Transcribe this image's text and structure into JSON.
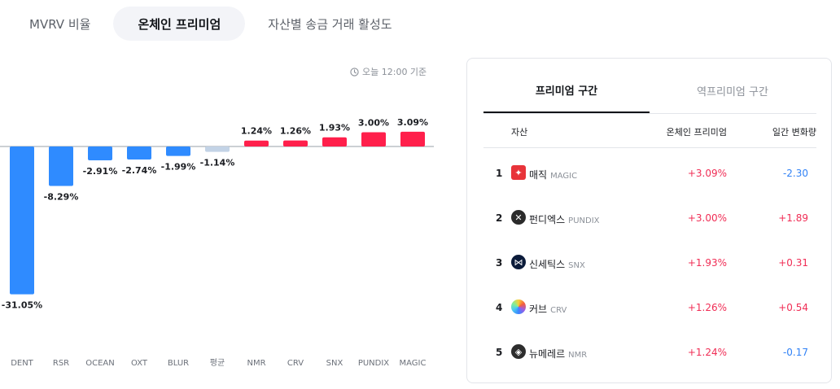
{
  "tabs": [
    "MVRV 비율",
    "온체인 프리미엄",
    "자산별 송금 거래 활성도"
  ],
  "updated_label": "오늘 12:00 기준",
  "colors": {
    "positive": "#ff1f4b",
    "negative": "#2f8bff",
    "average": "#c3d3e6",
    "up_text": "#f02d55",
    "down_text": "#3182f6"
  },
  "chart_data": {
    "type": "bar",
    "categories": [
      "DENT",
      "RSR",
      "OCEAN",
      "OXT",
      "BLUR",
      "평균",
      "NMR",
      "CRV",
      "SNX",
      "PUNDIX",
      "MAGIC"
    ],
    "values": [
      -31.05,
      -8.29,
      -2.91,
      -2.74,
      -1.99,
      -1.14,
      1.24,
      1.26,
      1.93,
      3.0,
      3.09
    ],
    "labels": [
      "-31.05%",
      "-8.29%",
      "-2.91%",
      "-2.74%",
      "-1.99%",
      "-1.14%",
      "1.24%",
      "1.26%",
      "1.93%",
      "3.00%",
      "3.09%"
    ],
    "highlight_category": "평균",
    "title": "",
    "xlabel": "",
    "ylabel": ""
  },
  "panel": {
    "tabs": [
      "프리미엄 구간",
      "역프리미엄 구간"
    ],
    "headers": {
      "asset": "자산",
      "premium": "온체인 프리미엄",
      "change": "일간 변화량"
    },
    "rows": [
      {
        "rank": "1",
        "name": "매직",
        "symbol": "MAGIC",
        "premium": "+3.09%",
        "change": "-2.30",
        "dir": "down",
        "icon": "magic-coin-icon"
      },
      {
        "rank": "2",
        "name": "펀디엑스",
        "symbol": "PUNDIX",
        "premium": "+3.00%",
        "change": "+1.89",
        "dir": "up",
        "icon": "pundix-coin-icon"
      },
      {
        "rank": "3",
        "name": "신세틱스",
        "symbol": "SNX",
        "premium": "+1.93%",
        "change": "+0.31",
        "dir": "up",
        "icon": "snx-coin-icon"
      },
      {
        "rank": "4",
        "name": "커브",
        "symbol": "CRV",
        "premium": "+1.26%",
        "change": "+0.54",
        "dir": "up",
        "icon": "crv-coin-icon"
      },
      {
        "rank": "5",
        "name": "뉴메레르",
        "symbol": "NMR",
        "premium": "+1.24%",
        "change": "-0.17",
        "dir": "down",
        "icon": "nmr-coin-icon"
      }
    ]
  }
}
